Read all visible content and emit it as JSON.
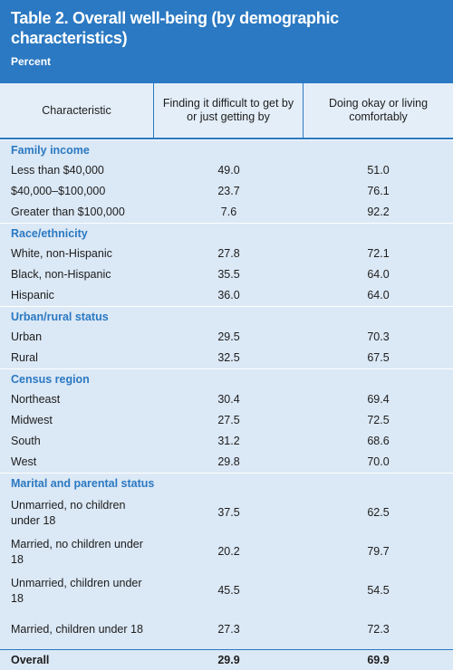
{
  "header": {
    "title": "Table 2. Overall well-being (by demographic characteristics)",
    "subtitle": "Percent"
  },
  "table": {
    "columns": [
      "Characteristic",
      "Finding it difficult to get by or just getting by",
      "Doing okay or living comfortably"
    ],
    "sections": [
      {
        "heading": "Family income",
        "rows": [
          [
            "Less than $40,000",
            "49.0",
            "51.0"
          ],
          [
            "$40,000–$100,000",
            "23.7",
            "76.1"
          ],
          [
            "Greater than $100,000",
            "7.6",
            "92.2"
          ]
        ]
      },
      {
        "heading": "Race/ethnicity",
        "rows": [
          [
            "White, non-Hispanic",
            "27.8",
            "72.1"
          ],
          [
            "Black, non-Hispanic",
            "35.5",
            "64.0"
          ],
          [
            "Hispanic",
            "36.0",
            "64.0"
          ]
        ]
      },
      {
        "heading": "Urban/rural status",
        "rows": [
          [
            "Urban",
            "29.5",
            "70.3"
          ],
          [
            "Rural",
            "32.5",
            "67.5"
          ]
        ]
      },
      {
        "heading": "Census region",
        "rows": [
          [
            "Northeast",
            "30.4",
            "69.4"
          ],
          [
            "Midwest",
            "27.5",
            "72.5"
          ],
          [
            "South",
            "31.2",
            "68.6"
          ],
          [
            "West",
            "29.8",
            "70.0"
          ]
        ]
      },
      {
        "heading": "Marital and parental status",
        "rows": [
          [
            "Unmarried, no children under 18",
            "37.5",
            "62.5"
          ],
          [
            "Married, no children under 18",
            "20.2",
            "79.7"
          ],
          [
            "Unmarried, children under 18",
            "45.5",
            "54.5"
          ],
          [
            "Married, children under 18",
            "27.3",
            "72.3"
          ]
        ]
      }
    ],
    "total": [
      "Overall",
      "29.9",
      "69.9"
    ]
  }
}
